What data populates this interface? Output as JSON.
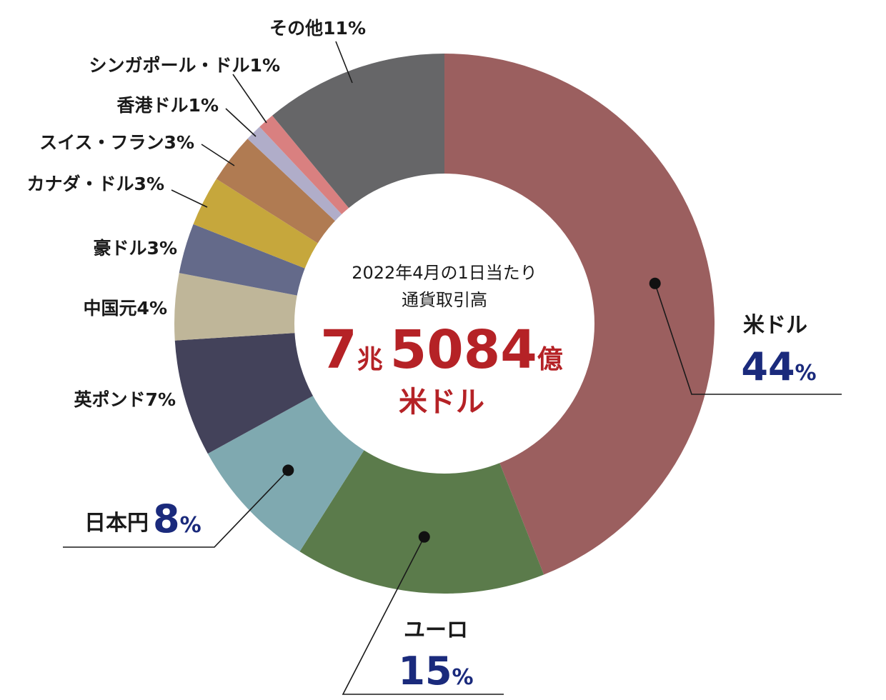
{
  "chart_data": {
    "type": "pie",
    "center": {
      "line1": "2022年4月の1日当たり",
      "line2": "通貨取引高",
      "amount_num1": "7",
      "amount_unit1": "兆",
      "amount_num2": "5084",
      "amount_unit2": "億",
      "currency": "米ドル"
    },
    "slices": [
      {
        "label": "米ドル",
        "value": 44,
        "pct_text": "44",
        "color": "#9b5f5f"
      },
      {
        "label": "ユーロ",
        "value": 15,
        "pct_text": "15",
        "color": "#5b7b4b"
      },
      {
        "label": "日本円",
        "value": 8,
        "pct_text": "8",
        "color": "#7fa9b0"
      },
      {
        "label": "英ポンド",
        "value": 7,
        "pct_text": "7%",
        "color": "#43425a"
      },
      {
        "label": "中国元",
        "value": 4,
        "pct_text": "4%",
        "color": "#bfb699"
      },
      {
        "label": "豪ドル",
        "value": 3,
        "pct_text": "3%",
        "color": "#646a8a"
      },
      {
        "label": "カナダ・ドル",
        "value": 3,
        "pct_text": "3%",
        "color": "#c6a73c"
      },
      {
        "label": "スイス・フラン",
        "value": 3,
        "pct_text": "3%",
        "color": "#b07b52"
      },
      {
        "label": "香港ドル",
        "value": 1,
        "pct_text": "1%",
        "color": "#b0adc9"
      },
      {
        "label": "シンガポール・ドル",
        "value": 1,
        "pct_text": "1%",
        "color": "#d98080"
      },
      {
        "label": "その他",
        "value": 11,
        "pct_text": "11%",
        "color": "#666668"
      }
    ],
    "percent_sign": "%",
    "accent_color": "#1a2a7c",
    "center_color": "#b52226"
  }
}
